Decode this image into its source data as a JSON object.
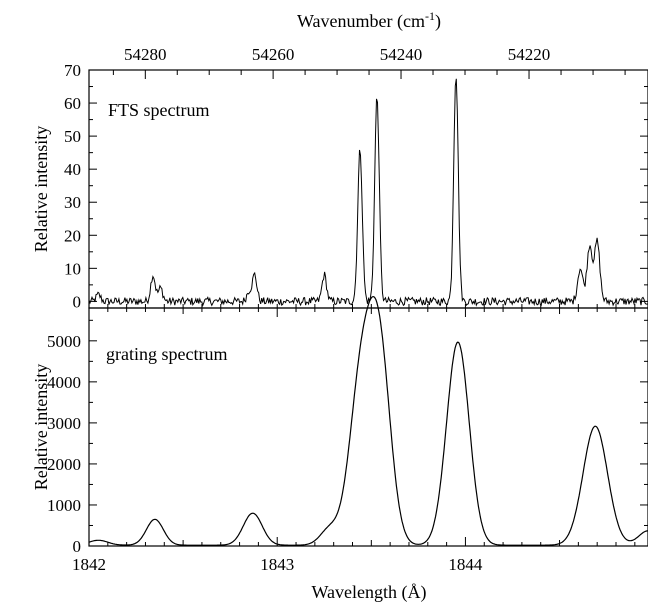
{
  "chart_data": [
    {
      "type": "line",
      "panel": "top",
      "annotation": "FTS spectrum",
      "ylabel": "Relative intensity",
      "ylim": [
        -2,
        70
      ],
      "yticks": [
        0,
        10,
        20,
        30,
        40,
        50,
        60,
        70
      ],
      "x2label_text": "Wavenumber (cm",
      "x2label_superscript": "-1",
      "x2label_close": ")",
      "x2ticks": [
        54280,
        54260,
        54240,
        54220
      ],
      "baseline_noise": 1.2,
      "peaks": [
        {
          "x": 1842.05,
          "y": 2,
          "width": 0.012
        },
        {
          "x": 1842.34,
          "y": 8,
          "width": 0.012
        },
        {
          "x": 1842.38,
          "y": 4,
          "width": 0.012
        },
        {
          "x": 1842.88,
          "y": 8,
          "width": 0.012
        },
        {
          "x": 1842.85,
          "y": 3,
          "width": 0.012
        },
        {
          "x": 1843.25,
          "y": 8,
          "width": 0.012
        },
        {
          "x": 1843.44,
          "y": 46,
          "width": 0.012
        },
        {
          "x": 1843.53,
          "y": 62,
          "width": 0.012
        },
        {
          "x": 1843.95,
          "y": 69,
          "width": 0.012
        },
        {
          "x": 1844.61,
          "y": 10,
          "width": 0.014
        },
        {
          "x": 1844.66,
          "y": 17,
          "width": 0.014
        },
        {
          "x": 1844.7,
          "y": 18,
          "width": 0.014
        }
      ]
    },
    {
      "type": "line",
      "panel": "bottom",
      "annotation": "grating spectrum",
      "ylabel": "Relative intensity",
      "xlabel": "Wavelength (Å)",
      "xlim": [
        1842,
        1844.97
      ],
      "ylim": [
        0,
        5800
      ],
      "yticks": [
        0,
        1000,
        2000,
        3000,
        4000,
        5000
      ],
      "xticks": [
        1842,
        1843,
        1844
      ],
      "peaks": [
        {
          "x": 1842.05,
          "y": 120,
          "width": 0.05
        },
        {
          "x": 1842.35,
          "y": 630,
          "width": 0.045
        },
        {
          "x": 1842.87,
          "y": 780,
          "width": 0.05
        },
        {
          "x": 1843.28,
          "y": 400,
          "width": 0.05
        },
        {
          "x": 1843.44,
          "y": 3600,
          "width": 0.06
        },
        {
          "x": 1843.54,
          "y": 4800,
          "width": 0.06
        },
        {
          "x": 1843.96,
          "y": 4950,
          "width": 0.06
        },
        {
          "x": 1844.69,
          "y": 2900,
          "width": 0.065
        },
        {
          "x": 1844.97,
          "y": 350,
          "width": 0.05
        }
      ]
    }
  ]
}
